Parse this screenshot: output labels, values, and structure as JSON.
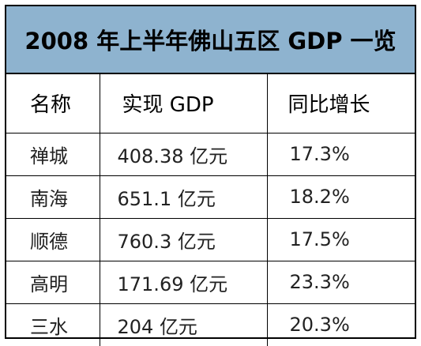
{
  "title": "2008 年上半年佛山五区 GDP 一览",
  "headers": [
    "名称",
    "实现 GDP",
    "同比增长"
  ],
  "rows": [
    {
      "name": "禅城",
      "gdp": "408.38 亿元",
      "growth": "17.3%"
    },
    {
      "name": "南海",
      "gdp": "651.1 亿元",
      "growth": "18.2%"
    },
    {
      "name": "顺德",
      "gdp": "760.3 亿元",
      "growth": "17.5%"
    },
    {
      "name": "高明",
      "gdp": "171.69 亿元",
      "growth": "23.3%"
    },
    {
      "name": "三水",
      "gdp": "204 亿元",
      "growth": "20.3%"
    }
  ]
}
